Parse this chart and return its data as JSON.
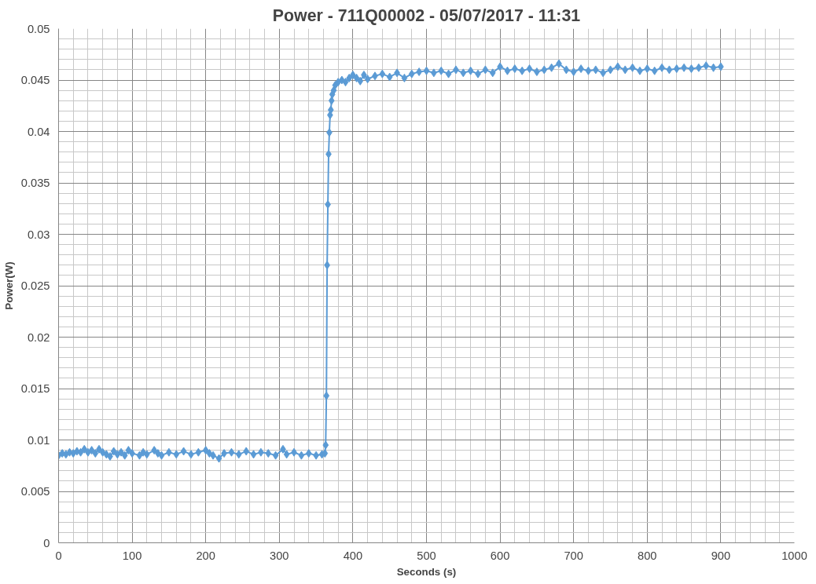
{
  "chart_data": {
    "type": "line",
    "title": "Power - 711Q00002 - 05/07/2017 - 11:31",
    "xlabel": "Seconds (s)",
    "ylabel": "Power(W)",
    "xlim": [
      0,
      1000
    ],
    "xticks": [
      0,
      100,
      200,
      300,
      400,
      500,
      600,
      700,
      800,
      900,
      1000
    ],
    "ylim": [
      0,
      0.05
    ],
    "yticks": [
      0,
      0.005,
      0.01,
      0.015,
      0.02,
      0.025,
      0.03,
      0.035,
      0.04,
      0.045,
      0.05
    ],
    "grid": true,
    "marker": "diamond",
    "line_style": "solid",
    "series": [
      {
        "color": "#5b9bd5",
        "x": [
          0,
          5,
          10,
          15,
          20,
          25,
          30,
          35,
          40,
          45,
          50,
          55,
          60,
          65,
          70,
          75,
          80,
          85,
          90,
          95,
          100,
          110,
          115,
          120,
          130,
          135,
          140,
          150,
          160,
          170,
          180,
          190,
          200,
          205,
          210,
          218,
          225,
          235,
          245,
          255,
          265,
          275,
          285,
          295,
          305,
          310,
          320,
          330,
          340,
          350,
          358,
          362,
          363,
          364,
          365,
          366,
          367,
          368,
          369,
          370,
          371,
          372,
          374,
          376,
          380,
          385,
          390,
          395,
          400,
          405,
          410,
          415,
          420,
          430,
          440,
          450,
          460,
          470,
          480,
          490,
          500,
          510,
          520,
          530,
          540,
          550,
          560,
          570,
          580,
          590,
          600,
          610,
          620,
          630,
          640,
          650,
          660,
          670,
          680,
          690,
          700,
          710,
          720,
          730,
          740,
          750,
          760,
          770,
          780,
          790,
          800,
          810,
          820,
          830,
          840,
          850,
          860,
          870,
          880,
          890,
          900
        ],
        "values": [
          0.0085,
          0.0087,
          0.0086,
          0.0088,
          0.0087,
          0.0089,
          0.0088,
          0.0091,
          0.0088,
          0.009,
          0.0087,
          0.0091,
          0.0088,
          0.0086,
          0.0084,
          0.0089,
          0.0086,
          0.0088,
          0.0085,
          0.009,
          0.0087,
          0.0085,
          0.0088,
          0.0086,
          0.009,
          0.0087,
          0.0085,
          0.0088,
          0.0086,
          0.0089,
          0.0086,
          0.0088,
          0.009,
          0.0087,
          0.0085,
          0.0082,
          0.0087,
          0.0088,
          0.0086,
          0.0089,
          0.0086,
          0.0088,
          0.0087,
          0.0085,
          0.0091,
          0.0086,
          0.0088,
          0.0085,
          0.0087,
          0.0085,
          0.0086,
          0.0087,
          0.0095,
          0.0143,
          0.027,
          0.0329,
          0.0378,
          0.0399,
          0.0416,
          0.0421,
          0.043,
          0.0436,
          0.044,
          0.0445,
          0.0448,
          0.045,
          0.0448,
          0.0452,
          0.0455,
          0.0452,
          0.0449,
          0.0455,
          0.0451,
          0.0454,
          0.0456,
          0.0453,
          0.0457,
          0.0452,
          0.0456,
          0.0458,
          0.0459,
          0.0457,
          0.0459,
          0.0456,
          0.046,
          0.0457,
          0.0459,
          0.0456,
          0.046,
          0.0457,
          0.0463,
          0.0459,
          0.0461,
          0.0459,
          0.0461,
          0.0458,
          0.046,
          0.0462,
          0.0466,
          0.046,
          0.0458,
          0.0461,
          0.0459,
          0.046,
          0.0457,
          0.046,
          0.0463,
          0.046,
          0.0462,
          0.0459,
          0.0461,
          0.0459,
          0.0462,
          0.046,
          0.0461,
          0.0462,
          0.0461,
          0.0462,
          0.0464,
          0.0462,
          0.0463
        ]
      }
    ]
  }
}
